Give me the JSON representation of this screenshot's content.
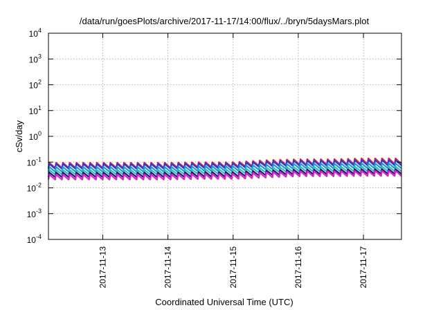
{
  "chart_data": {
    "type": "line",
    "title": "/data/run/goesPlots/archive/2017-11-17/14:00/flux/../bryn/5daysMars.plot",
    "xlabel": "Coordinated Universal Time (UTC)",
    "ylabel": "cSv/day",
    "yscale": "log",
    "ylim": [
      0.0001,
      10000
    ],
    "xlim": [
      "2017-11-12 04:00",
      "2017-11-17 14:00"
    ],
    "grid": true,
    "x_ticks": [
      "2017-11-13",
      "2017-11-14",
      "2017-11-15",
      "2017-11-16",
      "2017-11-17"
    ],
    "y_ticks": [
      {
        "value": 0.0001,
        "base": "10",
        "exp": "-4"
      },
      {
        "value": 0.001,
        "base": "10",
        "exp": "-3"
      },
      {
        "value": 0.01,
        "base": "10",
        "exp": "-2"
      },
      {
        "value": 0.1,
        "base": "10",
        "exp": "-1"
      },
      {
        "value": 1,
        "base": "10",
        "exp": "0"
      },
      {
        "value": 10,
        "base": "10",
        "exp": "1"
      },
      {
        "value": 100,
        "base": "10",
        "exp": "2"
      },
      {
        "value": 1000,
        "base": "10",
        "exp": "3"
      },
      {
        "value": 10000,
        "base": "10",
        "exp": "4"
      }
    ],
    "x": [
      "2017-11-12 04:00",
      "2017-11-13 00:00",
      "2017-11-14 00:00",
      "2017-11-14 12:00",
      "2017-11-15 00:00",
      "2017-11-15 12:00",
      "2017-11-16 00:00",
      "2017-11-16 12:00",
      "2017-11-17 00:00",
      "2017-11-17 14:00"
    ],
    "series": [
      {
        "color": "#e8202a",
        "peak": [
          0.095,
          0.095,
          0.095,
          0.1,
          0.1,
          0.12,
          0.13,
          0.13,
          0.14,
          0.14
        ],
        "trough": [
          0.06,
          0.06,
          0.06,
          0.065,
          0.065,
          0.075,
          0.08,
          0.08,
          0.085,
          0.085
        ]
      },
      {
        "color": "#2a3bd6",
        "peak": [
          0.085,
          0.085,
          0.085,
          0.09,
          0.09,
          0.105,
          0.115,
          0.115,
          0.12,
          0.12
        ],
        "trough": [
          0.055,
          0.055,
          0.055,
          0.058,
          0.058,
          0.068,
          0.072,
          0.072,
          0.075,
          0.075
        ]
      },
      {
        "color": "#2b8fe0",
        "peak": [
          0.065,
          0.065,
          0.065,
          0.07,
          0.07,
          0.08,
          0.088,
          0.088,
          0.09,
          0.09
        ],
        "trough": [
          0.042,
          0.042,
          0.042,
          0.045,
          0.045,
          0.052,
          0.056,
          0.056,
          0.058,
          0.058
        ]
      },
      {
        "color": "#22c4b4",
        "peak": [
          0.05,
          0.05,
          0.05,
          0.053,
          0.053,
          0.06,
          0.066,
          0.066,
          0.068,
          0.068
        ],
        "trough": [
          0.033,
          0.033,
          0.033,
          0.035,
          0.035,
          0.04,
          0.043,
          0.043,
          0.044,
          0.044
        ]
      },
      {
        "color": "#1c1c6e",
        "peak": [
          0.04,
          0.04,
          0.04,
          0.042,
          0.042,
          0.048,
          0.052,
          0.052,
          0.054,
          0.054
        ],
        "trough": [
          0.026,
          0.026,
          0.026,
          0.027,
          0.027,
          0.031,
          0.034,
          0.034,
          0.035,
          0.035
        ]
      },
      {
        "color": "#e020d0",
        "peak": [
          0.033,
          0.033,
          0.033,
          0.035,
          0.035,
          0.04,
          0.044,
          0.044,
          0.046,
          0.046
        ],
        "trough": [
          0.021,
          0.021,
          0.021,
          0.022,
          0.022,
          0.025,
          0.028,
          0.028,
          0.029,
          0.029
        ]
      }
    ],
    "sawtooth_period_hours": 2.5
  }
}
